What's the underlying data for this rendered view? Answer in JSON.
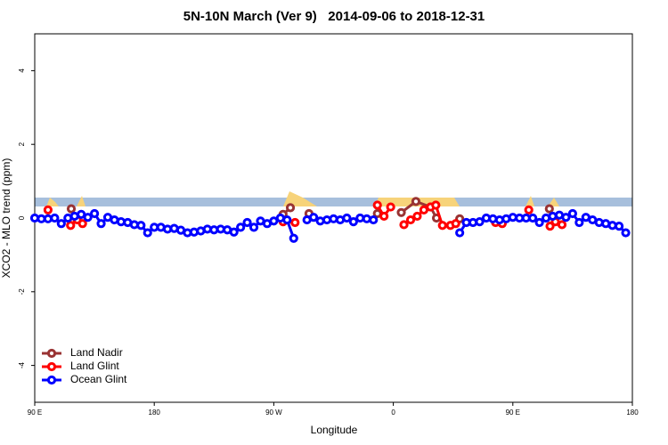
{
  "chart_data": {
    "type": "line",
    "title": "5N-10N March (Ver 9)   2014-09-06 to 2018-12-31",
    "x_label": "Longitude",
    "y_label": "XCO2 - MLO trend (ppm)",
    "xlim": [
      90,
      540
    ],
    "ylim": [
      -5,
      5
    ],
    "xticks": [
      {
        "value": 90,
        "label": "90 E"
      },
      180,
      {
        "value": 270,
        "label": "90 W"
      },
      {
        "value": 360,
        "label": "0"
      },
      {
        "value": 450,
        "label": "90 E"
      },
      {
        "value": 540,
        "label": "180"
      }
    ],
    "yticks": [
      -4,
      -2,
      0,
      2,
      4
    ],
    "legend": "bottom-left",
    "series": [
      {
        "name": "Land Nadir",
        "color": "#993333",
        "x": [
          117.5,
          null,
          277,
          282.5,
          null,
          296.5,
          null,
          348,
          null,
          366,
          377,
          388,
          392.5,
          null,
          410,
          null,
          477.5
        ],
        "values": [
          0.25,
          null,
          0.1,
          0.28,
          null,
          0.12,
          null,
          0.12,
          null,
          0.15,
          0.45,
          0.3,
          0,
          null,
          -0.02,
          null,
          0.25
        ]
      },
      {
        "name": "Land Glint",
        "color": "#ff0000",
        "x": [
          100,
          null,
          117,
          122,
          126,
          null,
          277,
          286,
          null,
          348,
          353,
          358,
          null,
          368,
          373,
          378,
          383,
          388,
          392,
          397,
          403,
          407,
          null,
          437,
          442,
          null,
          462,
          null,
          478,
          482,
          487
        ],
        "values": [
          0.22,
          null,
          -0.2,
          -0.05,
          -0.15,
          null,
          -0.1,
          -0.12,
          null,
          0.35,
          0.05,
          0.3,
          null,
          -0.18,
          -0.05,
          0.05,
          0.22,
          0.3,
          0.35,
          -0.2,
          -0.2,
          -0.15,
          null,
          -0.12,
          -0.15,
          null,
          0.22,
          null,
          -0.22,
          -0.1,
          -0.18
        ]
      },
      {
        "name": "Ocean Glint",
        "color": "#0000ff",
        "x": [
          90,
          95,
          100,
          105,
          110,
          115,
          120,
          125,
          130,
          135,
          140,
          145,
          150,
          155,
          160,
          165,
          170,
          175,
          180,
          185,
          190,
          195,
          200,
          205,
          210,
          215,
          220,
          225,
          230,
          235,
          240,
          245,
          250,
          255,
          260,
          265,
          270,
          275,
          280,
          285,
          null,
          295,
          300,
          305,
          310,
          315,
          320,
          325,
          330,
          335,
          340,
          345,
          null,
          410,
          415,
          420,
          425,
          430,
          435,
          440,
          445,
          450,
          455,
          460,
          465,
          470,
          475,
          480,
          485,
          490,
          495,
          500,
          505,
          510,
          515,
          520,
          525,
          530,
          535
        ],
        "values": [
          0,
          -0.02,
          -0.02,
          0,
          -0.15,
          0,
          0.05,
          0.1,
          0.02,
          0.12,
          -0.15,
          0.02,
          -0.05,
          -0.1,
          -0.12,
          -0.18,
          -0.2,
          -0.4,
          -0.25,
          -0.25,
          -0.3,
          -0.28,
          -0.33,
          -0.4,
          -0.38,
          -0.35,
          -0.3,
          -0.32,
          -0.3,
          -0.32,
          -0.38,
          -0.25,
          -0.12,
          -0.25,
          -0.08,
          -0.15,
          -0.08,
          0,
          -0.05,
          -0.55,
          null,
          -0.05,
          0.02,
          -0.08,
          -0.05,
          -0.02,
          -0.05,
          0,
          -0.1,
          0,
          -0.02,
          -0.05,
          null,
          -0.4,
          -0.12,
          -0.12,
          -0.1,
          0,
          -0.02,
          -0.05,
          -0.02,
          0.02,
          0,
          0,
          0,
          -0.12,
          0,
          0.05,
          0.08,
          0.02,
          0.12,
          -0.12,
          0.02,
          -0.05,
          -0.12,
          -0.15,
          -0.2,
          -0.22,
          -0.4
        ]
      }
    ]
  }
}
